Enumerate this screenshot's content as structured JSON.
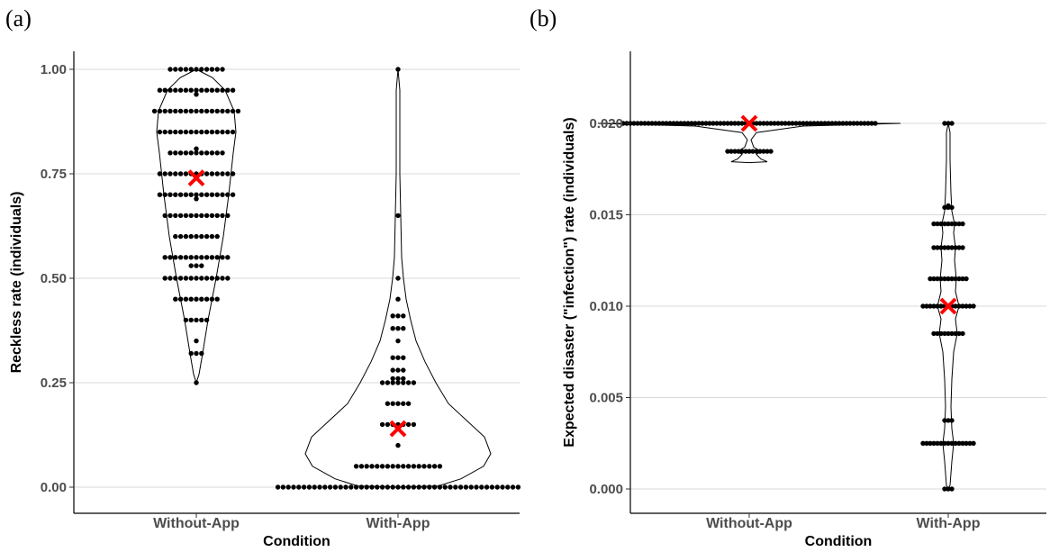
{
  "chart_data": [
    {
      "panel_label": "(a)",
      "type": "violin",
      "xlabel": "Condition",
      "ylabel": "Reckless rate (individuals)",
      "categories": [
        "Without-App",
        "With-App"
      ],
      "ylim": [
        0,
        1
      ],
      "yticks": [
        0.0,
        0.25,
        0.5,
        0.75,
        1.0
      ],
      "ytick_labels": [
        "0.00",
        "0.25",
        "0.50",
        "0.75",
        "1.00"
      ],
      "grid": "horizontal",
      "means": [
        0.74,
        0.14
      ],
      "mean_marker_color": "#ff0000",
      "dot_rows": [
        [
          {
            "y": 1.0,
            "n": 11
          },
          {
            "y": 0.95,
            "n": 15
          },
          {
            "y": 0.94,
            "n": 1
          },
          {
            "y": 0.9,
            "n": 17
          },
          {
            "y": 0.85,
            "n": 15
          },
          {
            "y": 0.8,
            "n": 11
          },
          {
            "y": 0.81,
            "n": 1
          },
          {
            "y": 0.75,
            "n": 15
          },
          {
            "y": 0.7,
            "n": 15
          },
          {
            "y": 0.69,
            "n": 1
          },
          {
            "y": 0.65,
            "n": 13
          },
          {
            "y": 0.6,
            "n": 9
          },
          {
            "y": 0.55,
            "n": 13
          },
          {
            "y": 0.53,
            "n": 3
          },
          {
            "y": 0.5,
            "n": 13
          },
          {
            "y": 0.45,
            "n": 9
          },
          {
            "y": 0.4,
            "n": 5
          },
          {
            "y": 0.35,
            "n": 1
          },
          {
            "y": 0.32,
            "n": 3
          },
          {
            "y": 0.25,
            "n": 1
          }
        ],
        [
          {
            "y": 1.0,
            "n": 1
          },
          {
            "y": 0.65,
            "n": 1
          },
          {
            "y": 0.5,
            "n": 1
          },
          {
            "y": 0.45,
            "n": 1
          },
          {
            "y": 0.41,
            "n": 3
          },
          {
            "y": 0.38,
            "n": 3
          },
          {
            "y": 0.35,
            "n": 1
          },
          {
            "y": 0.31,
            "n": 3
          },
          {
            "y": 0.28,
            "n": 3
          },
          {
            "y": 0.26,
            "n": 3
          },
          {
            "y": 0.25,
            "n": 7
          },
          {
            "y": 0.2,
            "n": 5
          },
          {
            "y": 0.15,
            "n": 7
          },
          {
            "y": 0.1,
            "n": 1
          },
          {
            "y": 0.05,
            "n": 17
          },
          {
            "y": 0.0,
            "n": 47
          }
        ]
      ]
    },
    {
      "panel_label": "(b)",
      "type": "violin",
      "xlabel": "Condition",
      "ylabel": "Expected disaster (\"infection\") rate (individuals)",
      "categories": [
        "Without-App",
        "With-App"
      ],
      "ylim": [
        0,
        0.024
      ],
      "yticks": [
        0.0,
        0.005,
        0.01,
        0.015,
        0.02
      ],
      "ytick_labels": [
        "0.000",
        "0.005",
        "0.010",
        "0.015",
        "0.020"
      ],
      "grid": "horizontal",
      "means": [
        0.02,
        0.01
      ],
      "mean_marker_color": "#ff0000",
      "dot_rows": [
        [
          {
            "y": 0.02,
            "n": 71
          },
          {
            "y": 0.01847,
            "n": 13
          }
        ],
        [
          {
            "y": 0.02,
            "n": 3
          },
          {
            "y": 0.0155,
            "n": 1
          },
          {
            "y": 0.0154,
            "n": 3
          },
          {
            "y": 0.0145,
            "n": 9
          },
          {
            "y": 0.0132,
            "n": 9
          },
          {
            "y": 0.0115,
            "n": 11
          },
          {
            "y": 0.01,
            "n": 15
          },
          {
            "y": 0.0085,
            "n": 9
          },
          {
            "y": 0.00375,
            "n": 3
          },
          {
            "y": 0.0025,
            "n": 15
          },
          {
            "y": 0.0,
            "n": 3
          }
        ]
      ]
    }
  ]
}
